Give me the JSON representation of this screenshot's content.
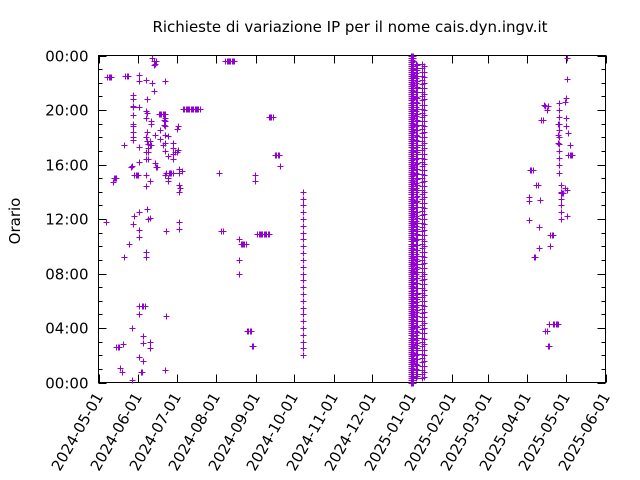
{
  "chart_data": {
    "type": "scatter",
    "title": "Richieste di variazione IP per il nome cais.dyn.ingv.it",
    "xlabel": "",
    "ylabel": "Orario",
    "x_type": "date",
    "xlim": [
      "2024-05-01",
      "2025-06-01"
    ],
    "ylim": [
      0,
      24
    ],
    "x_tick_labels": [
      "2024-05-01",
      "2024-06-01",
      "2024-07-01",
      "2024-08-01",
      "2024-09-01",
      "2024-10-01",
      "2024-11-01",
      "2024-12-01",
      "2025-01-01",
      "2025-02-01",
      "2025-03-01",
      "2025-04-01",
      "2025-05-01",
      "2025-06-01"
    ],
    "y_tick_labels": [
      "00:00",
      "04:00",
      "08:00",
      "12:00",
      "16:00",
      "20:00",
      "00:00"
    ],
    "grid": false,
    "marker": "+",
    "color": "#9400d3",
    "points": [
      [
        "2024-05-07",
        11.8
      ],
      [
        "2024-05-08",
        22.4
      ],
      [
        "2024-05-09",
        22.4
      ],
      [
        "2024-05-10",
        22.4
      ],
      [
        "2024-05-11",
        22.4
      ],
      [
        "2024-05-12",
        14.7
      ],
      [
        "2024-05-13",
        15.0
      ],
      [
        "2024-05-14",
        15.0
      ],
      [
        "2024-05-15",
        15.0
      ],
      [
        "2024-05-15",
        2.6
      ],
      [
        "2024-05-16",
        2.6
      ],
      [
        "2024-05-17",
        2.6
      ],
      [
        "2024-05-18",
        1.1
      ],
      [
        "2024-05-19",
        0.8
      ],
      [
        "2024-05-20",
        2.8
      ],
      [
        "2024-05-21",
        9.2
      ],
      [
        "2024-05-21",
        17.4
      ],
      [
        "2024-05-22",
        22.5
      ],
      [
        "2024-05-23",
        22.5
      ],
      [
        "2024-05-24",
        22.5
      ],
      [
        "2024-05-25",
        10.2
      ],
      [
        "2024-05-26",
        15.8
      ],
      [
        "2024-05-27",
        15.9
      ],
      [
        "2024-05-27",
        4.0
      ],
      [
        "2024-05-28",
        11.6
      ],
      [
        "2024-05-29",
        12.2
      ],
      [
        "2024-05-29",
        15.2
      ],
      [
        "2024-05-30",
        15.2
      ],
      [
        "2024-05-31",
        15.2
      ],
      [
        "2024-06-01",
        15.2
      ],
      [
        "2024-05-27",
        0.2
      ],
      [
        "2024-05-28",
        21.1
      ],
      [
        "2024-05-28",
        20.3
      ],
      [
        "2024-05-28",
        18.0
      ],
      [
        "2024-05-28",
        18.8
      ],
      [
        "2024-06-02",
        22.1
      ],
      [
        "2024-06-02",
        22.6
      ],
      [
        "2024-06-02",
        20.2
      ],
      [
        "2024-06-02",
        17.3
      ],
      [
        "2024-06-02",
        16.2
      ],
      [
        "2024-06-02",
        12.5
      ],
      [
        "2024-06-02",
        11.2
      ],
      [
        "2024-06-02",
        10.7
      ],
      [
        "2024-06-02",
        5.6
      ],
      [
        "2024-06-02",
        5.0
      ],
      [
        "2024-06-02",
        1.9
      ],
      [
        "2024-06-03",
        0.8
      ],
      [
        "2024-06-04",
        0.8
      ],
      [
        "2024-06-04",
        5.6
      ],
      [
        "2024-06-05",
        5.6
      ],
      [
        "2024-06-05",
        3.4
      ],
      [
        "2024-06-05",
        2.9
      ],
      [
        "2024-06-05",
        1.6
      ],
      [
        "2024-06-06",
        5.6
      ],
      [
        "2024-06-07",
        22.2
      ],
      [
        "2024-06-07",
        19.9
      ],
      [
        "2024-06-07",
        19.4
      ],
      [
        "2024-06-07",
        18.0
      ],
      [
        "2024-06-07",
        16.9
      ],
      [
        "2024-06-07",
        16.4
      ],
      [
        "2024-06-07",
        15.2
      ],
      [
        "2024-06-07",
        14.4
      ],
      [
        "2024-06-07",
        9.2
      ],
      [
        "2024-06-07",
        9.6
      ],
      [
        "2024-06-08",
        12.7
      ],
      [
        "2024-06-08",
        17.7
      ],
      [
        "2024-06-08",
        18.4
      ],
      [
        "2024-06-08",
        19.8
      ],
      [
        "2024-06-08",
        20.8
      ],
      [
        "2024-06-09",
        17.5
      ],
      [
        "2024-06-09",
        17.2
      ],
      [
        "2024-06-09",
        16.9
      ],
      [
        "2024-06-09",
        16.4
      ],
      [
        "2024-06-09",
        12.0
      ],
      [
        "2024-06-10",
        17.7
      ],
      [
        "2024-06-10",
        17.4
      ],
      [
        "2024-06-10",
        14.8
      ],
      [
        "2024-06-10",
        12.1
      ],
      [
        "2024-06-10",
        3.0
      ],
      [
        "2024-06-10",
        2.5
      ],
      [
        "2024-06-11",
        17.4
      ],
      [
        "2024-06-11",
        19.2
      ],
      [
        "2024-06-11",
        19.0
      ],
      [
        "2024-06-12",
        22.0
      ],
      [
        "2024-06-12",
        23.8
      ],
      [
        "2024-06-13",
        23.3
      ],
      [
        "2024-06-13",
        23.6
      ],
      [
        "2024-06-14",
        23.4
      ],
      [
        "2024-06-15",
        23.6
      ],
      [
        "2024-06-13",
        21.4
      ],
      [
        "2024-06-14",
        16.1
      ],
      [
        "2024-06-14",
        18.2
      ],
      [
        "2024-06-15",
        15.8
      ],
      [
        "2024-06-16",
        15.8
      ],
      [
        "2024-06-17",
        19.7
      ],
      [
        "2024-06-18",
        19.7
      ],
      [
        "2024-06-19",
        19.7
      ],
      [
        "2024-06-20",
        19.7
      ],
      [
        "2024-06-21",
        19.7
      ],
      [
        "2024-06-22",
        19.7
      ],
      [
        "2024-06-18",
        18.5
      ],
      [
        "2024-06-18",
        17.9
      ],
      [
        "2024-06-20",
        17.4
      ],
      [
        "2024-06-21",
        18.9
      ],
      [
        "2024-06-21",
        19.3
      ],
      [
        "2024-06-22",
        19.2
      ],
      [
        "2024-06-22",
        15.2
      ],
      [
        "2024-06-22",
        22.1
      ],
      [
        "2024-06-23",
        15.4
      ],
      [
        "2024-06-23",
        11.1
      ],
      [
        "2024-06-23",
        4.9
      ],
      [
        "2024-06-22",
        0.9
      ],
      [
        "2024-06-24",
        18.1
      ],
      [
        "2024-06-24",
        16.6
      ],
      [
        "2024-06-24",
        15.0
      ],
      [
        "2024-06-24",
        14.8
      ],
      [
        "2024-06-25",
        15.4
      ],
      [
        "2024-06-26",
        15.4
      ],
      [
        "2024-06-27",
        15.4
      ],
      [
        "2024-06-28",
        15.4
      ],
      [
        "2024-06-28",
        17.6
      ],
      [
        "2024-06-28",
        17.2
      ],
      [
        "2024-06-28",
        16.8
      ],
      [
        "2024-06-28",
        16.4
      ],
      [
        "2024-06-30",
        16.9
      ],
      [
        "2024-07-01",
        16.9
      ],
      [
        "2024-07-01",
        18.6
      ],
      [
        "2024-07-02",
        18.8
      ],
      [
        "2024-07-02",
        17.1
      ],
      [
        "2024-07-03",
        15.7
      ],
      [
        "2024-07-03",
        15.4
      ],
      [
        "2024-07-03",
        14.5
      ],
      [
        "2024-07-03",
        14.0
      ],
      [
        "2024-07-03",
        11.8
      ],
      [
        "2024-07-03",
        11.3
      ],
      [
        "2024-07-04",
        14.3
      ],
      [
        "2024-07-05",
        15.5
      ],
      [
        "2024-07-06",
        20.1
      ],
      [
        "2024-07-07",
        20.1
      ],
      [
        "2024-07-08",
        20.1
      ],
      [
        "2024-07-09",
        20.1
      ],
      [
        "2024-07-10",
        20.1
      ],
      [
        "2024-07-11",
        20.1
      ],
      [
        "2024-07-12",
        20.1
      ],
      [
        "2024-07-13",
        20.1
      ],
      [
        "2024-07-14",
        20.1
      ],
      [
        "2024-07-15",
        20.1
      ],
      [
        "2024-07-16",
        20.1
      ],
      [
        "2024-07-17",
        20.1
      ],
      [
        "2024-07-18",
        20.1
      ],
      [
        "2024-07-19",
        20.1
      ],
      [
        "2024-08-03",
        15.4
      ],
      [
        "2024-08-05",
        11.1
      ],
      [
        "2024-08-06",
        11.1
      ],
      [
        "2024-08-08",
        23.6
      ],
      [
        "2024-08-09",
        23.6
      ],
      [
        "2024-08-10",
        23.6
      ],
      [
        "2024-08-11",
        23.6
      ],
      [
        "2024-08-12",
        23.6
      ],
      [
        "2024-08-13",
        23.6
      ],
      [
        "2024-08-14",
        23.6
      ],
      [
        "2024-08-15",
        23.6
      ],
      [
        "2024-08-19",
        10.5
      ],
      [
        "2024-08-19",
        9.0
      ],
      [
        "2024-08-19",
        8.0
      ],
      [
        "2024-08-20",
        10.2
      ],
      [
        "2024-08-21",
        10.2
      ],
      [
        "2024-08-22",
        10.2
      ],
      [
        "2024-08-23",
        10.2
      ],
      [
        "2024-08-24",
        10.2
      ],
      [
        "2024-08-25",
        3.8
      ],
      [
        "2024-08-26",
        3.8
      ],
      [
        "2024-08-27",
        3.8
      ],
      [
        "2024-08-28",
        3.8
      ],
      [
        "2024-08-29",
        2.7
      ],
      [
        "2024-08-30",
        2.7
      ],
      [
        "2024-08-31",
        15.2
      ],
      [
        "2024-08-31",
        14.8
      ],
      [
        "2024-09-02",
        10.9
      ],
      [
        "2024-09-03",
        10.9
      ],
      [
        "2024-09-04",
        10.9
      ],
      [
        "2024-09-05",
        10.9
      ],
      [
        "2024-09-06",
        10.9
      ],
      [
        "2024-09-07",
        10.9
      ],
      [
        "2024-09-08",
        10.9
      ],
      [
        "2024-09-09",
        10.9
      ],
      [
        "2024-09-10",
        10.9
      ],
      [
        "2024-09-11",
        10.9
      ],
      [
        "2024-09-11",
        19.5
      ],
      [
        "2024-09-12",
        19.5
      ],
      [
        "2024-09-13",
        19.5
      ],
      [
        "2024-09-14",
        19.5
      ],
      [
        "2024-09-16",
        16.7
      ],
      [
        "2024-09-17",
        16.7
      ],
      [
        "2024-09-18",
        16.7
      ],
      [
        "2024-09-19",
        16.7
      ],
      [
        "2024-09-20",
        15.9
      ],
      [
        "2025-04-02",
        13.6
      ],
      [
        "2025-04-02",
        13.3
      ],
      [
        "2025-04-02",
        11.9
      ],
      [
        "2025-04-03",
        15.6
      ],
      [
        "2025-04-04",
        15.6
      ],
      [
        "2025-04-05",
        15.6
      ],
      [
        "2025-04-06",
        9.2
      ],
      [
        "2025-04-07",
        9.2
      ],
      [
        "2025-04-08",
        14.5
      ],
      [
        "2025-04-09",
        14.5
      ],
      [
        "2025-04-10",
        9.9
      ],
      [
        "2025-04-10",
        11.4
      ],
      [
        "2025-04-11",
        13.4
      ],
      [
        "2025-04-12",
        19.3
      ],
      [
        "2025-04-13",
        19.3
      ],
      [
        "2025-04-14",
        20.4
      ],
      [
        "2025-04-15",
        20.3
      ],
      [
        "2025-04-16",
        20.0
      ],
      [
        "2025-04-17",
        20.3
      ],
      [
        "2025-04-15",
        3.8
      ],
      [
        "2025-04-16",
        3.8
      ],
      [
        "2025-04-17",
        2.7
      ],
      [
        "2025-04-18",
        2.7
      ],
      [
        "2025-04-18",
        4.3
      ],
      [
        "2025-04-19",
        10.0
      ],
      [
        "2025-04-19",
        10.8
      ],
      [
        "2025-04-20",
        10.8
      ],
      [
        "2025-04-21",
        10.8
      ],
      [
        "2025-04-21",
        4.3
      ],
      [
        "2025-04-22",
        4.3
      ],
      [
        "2025-04-23",
        4.3
      ],
      [
        "2025-04-24",
        4.3
      ],
      [
        "2025-04-25",
        4.3
      ],
      [
        "2025-04-25",
        19.0
      ],
      [
        "2025-04-25",
        18.2
      ],
      [
        "2025-04-25",
        17.6
      ],
      [
        "2025-04-26",
        15.4
      ],
      [
        "2025-04-27",
        13.9
      ],
      [
        "2025-04-28",
        13.9
      ],
      [
        "2025-04-29",
        13.9
      ],
      [
        "2025-04-30",
        14.3
      ],
      [
        "2025-04-30",
        20.6
      ],
      [
        "2025-05-01",
        20.9
      ],
      [
        "2025-05-01",
        19.4
      ],
      [
        "2025-05-01",
        18.8
      ],
      [
        "2025-05-02",
        14.1
      ],
      [
        "2025-05-02",
        12.2
      ],
      [
        "2025-05-02",
        22.3
      ],
      [
        "2025-05-02",
        23.8
      ],
      [
        "2025-05-03",
        16.7
      ],
      [
        "2025-05-04",
        16.7
      ],
      [
        "2025-05-05",
        16.7
      ],
      [
        "2025-05-06",
        16.7
      ],
      [
        "2025-05-03",
        18.3
      ],
      [
        "2025-05-04",
        17.4
      ]
    ],
    "vertical_runs": [
      {
        "x": "2024-10-08",
        "y_start": 2.0,
        "y_end": 14.0,
        "step": 0.5
      },
      {
        "x": "2024-12-31",
        "y_start": 0.0,
        "y_end": 24.0,
        "step": 0.15
      },
      {
        "x": "2025-01-01",
        "y_start": 0.0,
        "y_end": 24.0,
        "step": 0.15
      },
      {
        "x": "2025-01-02",
        "y_start": 0.0,
        "y_end": 24.0,
        "step": 0.2
      },
      {
        "x": "2025-01-04",
        "y_start": 0.3,
        "y_end": 23.7,
        "step": 0.35
      },
      {
        "x": "2025-01-05",
        "y_start": 0.5,
        "y_end": 23.5,
        "step": 0.4
      },
      {
        "x": "2025-01-09",
        "y_start": 0.3,
        "y_end": 23.6,
        "step": 0.3
      },
      {
        "x": "2025-01-10",
        "y_start": 0.4,
        "y_end": 23.4,
        "step": 0.4
      },
      {
        "x": "2025-04-26",
        "y_start": 16.0,
        "y_end": 20.8,
        "step": 0.5
      },
      {
        "x": "2025-04-27",
        "y_start": 12.0,
        "y_end": 14.5,
        "step": 0.5
      },
      {
        "x": "2024-05-28",
        "y_start": 17.8,
        "y_end": 21.0,
        "step": 0.6
      },
      {
        "x": "2024-06-22",
        "y_start": 17.0,
        "y_end": 19.6,
        "step": 0.6
      }
    ]
  }
}
